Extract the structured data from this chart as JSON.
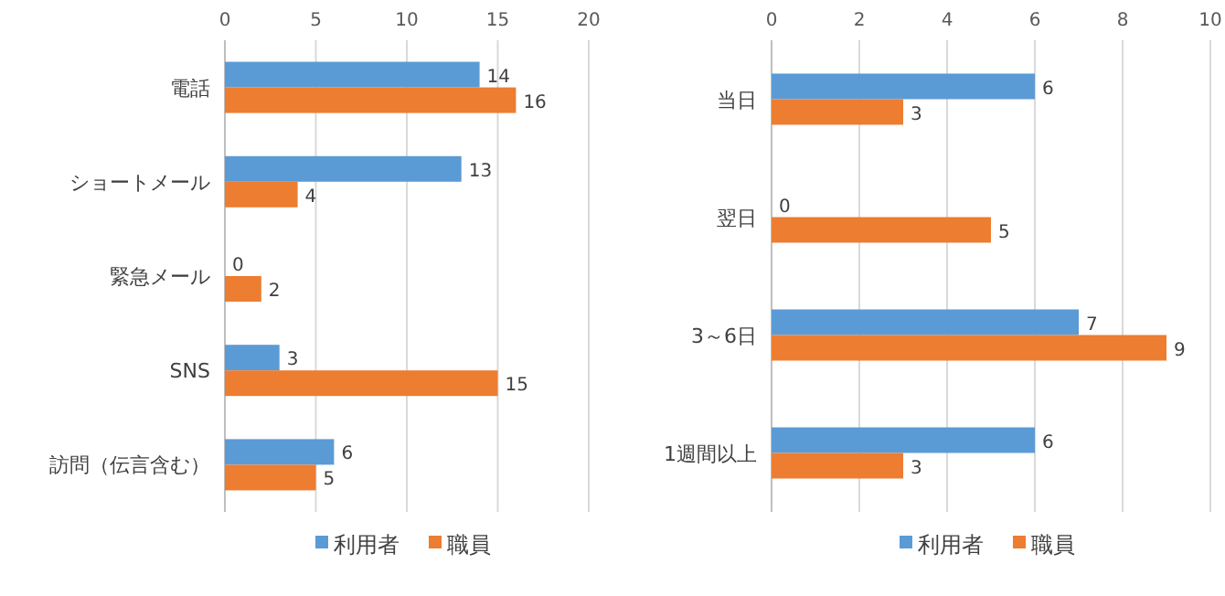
{
  "chart_data": [
    {
      "type": "bar",
      "orientation": "horizontal",
      "categories": [
        "電話",
        "ショートメール",
        "緊急メール",
        "SNS",
        "訪問（伝言含む）"
      ],
      "series": [
        {
          "name": "利用者",
          "color": "#5b9bd5",
          "values": [
            14,
            13,
            0,
            3,
            6
          ]
        },
        {
          "name": "職員",
          "color": "#ed7d31",
          "values": [
            16,
            4,
            2,
            15,
            5
          ]
        }
      ],
      "xlim": [
        0,
        20
      ],
      "xticks": [
        0,
        5,
        10,
        15,
        20
      ],
      "grid": "x",
      "legend": "bottom",
      "data_labels": true
    },
    {
      "type": "bar",
      "orientation": "horizontal",
      "categories": [
        "当日",
        "翌日",
        "3～6日",
        "1週間以上"
      ],
      "series": [
        {
          "name": "利用者",
          "color": "#5b9bd5",
          "values": [
            6,
            0,
            7,
            6
          ]
        },
        {
          "name": "職員",
          "color": "#ed7d31",
          "values": [
            3,
            5,
            9,
            3
          ]
        }
      ],
      "xlim": [
        0,
        10
      ],
      "xticks": [
        0,
        2,
        4,
        6,
        8,
        10
      ],
      "grid": "x",
      "legend": "bottom",
      "data_labels": true
    }
  ]
}
